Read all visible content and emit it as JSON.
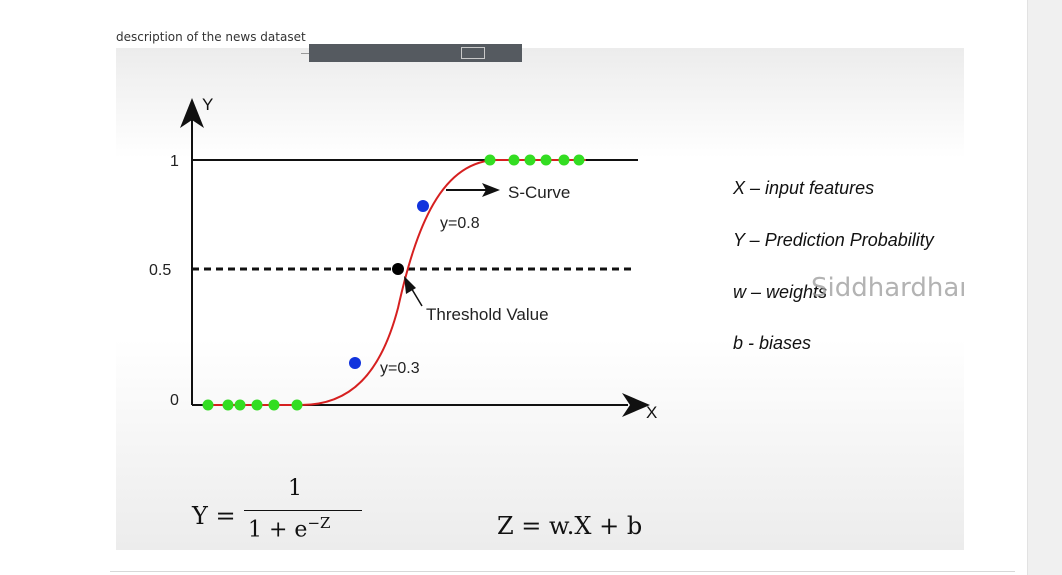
{
  "page": {
    "caption": "description of the news dataset"
  },
  "graph": {
    "y_axis_label": "Y",
    "x_axis_label": "X",
    "tick_1": "1",
    "tick_05": "0.5",
    "tick_0": "0",
    "curve_label": "S-Curve",
    "point_high_label": "y=0.8",
    "point_low_label": "y=0.3",
    "threshold_label": "Threshold Value",
    "colors": {
      "curve": "#d62020",
      "green_dots": "#33dd22",
      "blue_dots": "#1133dd",
      "threshold_dot": "#000000"
    }
  },
  "legend": {
    "x_line": "X – input features",
    "y_line": "Y – Prediction Probability",
    "w_line": "w – weights",
    "b_line": "b - biases"
  },
  "watermark": "Siddhardhan",
  "formulas": {
    "lhs": "Y =",
    "numerator": "1",
    "denominator_base": "1 + e",
    "denominator_exp": "−Z",
    "linear": "Z = w.X + b"
  }
}
